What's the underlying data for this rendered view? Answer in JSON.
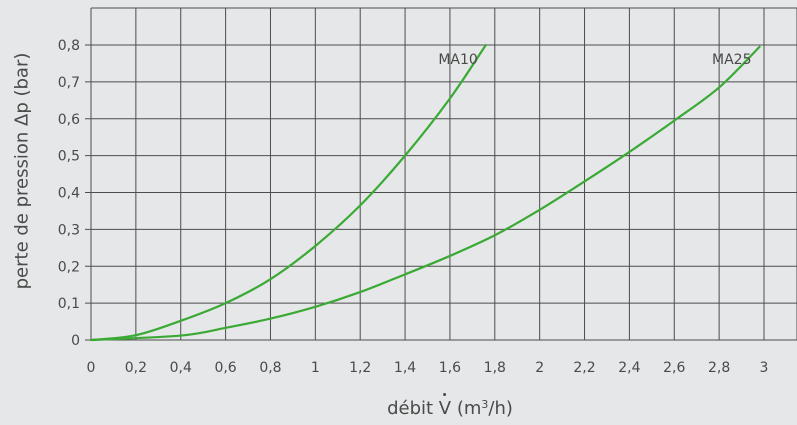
{
  "chart_data": {
    "type": "line",
    "title": "",
    "xlabel_prefix": "débit ",
    "xlabel_symbol": "V",
    "xlabel_unit_open": " (m",
    "xlabel_unit_sup": "3",
    "xlabel_unit_close": "/h)",
    "ylabel": "perte de pression Δp (bar)",
    "xlim": [
      0,
      3.15
    ],
    "ylim": [
      0,
      0.9
    ],
    "grid": true,
    "x_ticks": [
      0,
      0.2,
      0.4,
      0.6,
      0.8,
      1,
      1.2,
      1.4,
      1.6,
      1.8,
      2,
      2.2,
      2.4,
      2.6,
      2.8,
      3
    ],
    "x_tick_labels": [
      "0",
      "0,2",
      "0,4",
      "0,6",
      "0,8",
      "1",
      "1,2",
      "1,4",
      "1,6",
      "1,8",
      "2",
      "2,2",
      "2,4",
      "2,6",
      "2,8",
      "3"
    ],
    "y_ticks": [
      0,
      0.1,
      0.2,
      0.3,
      0.4,
      0.5,
      0.6,
      0.7,
      0.8
    ],
    "y_tick_labels": [
      "0",
      "0,1",
      "0,2",
      "0,3",
      "0,4",
      "0,5",
      "0,6",
      "0,7",
      "0,8"
    ],
    "line_color": "#3aaa35",
    "series": [
      {
        "name": "MA10",
        "x": [
          0,
          0.2,
          0.4,
          0.6,
          0.8,
          1.0,
          1.2,
          1.4,
          1.6,
          1.76
        ],
        "y": [
          0,
          0.013,
          0.052,
          0.1,
          0.165,
          0.255,
          0.365,
          0.5,
          0.655,
          0.8
        ]
      },
      {
        "name": "MA25",
        "x": [
          0,
          0.4,
          0.6,
          0.8,
          1.0,
          1.2,
          1.4,
          1.6,
          1.8,
          2.0,
          2.2,
          2.4,
          2.6,
          2.8,
          2.98
        ],
        "y": [
          0,
          0.012,
          0.033,
          0.058,
          0.09,
          0.13,
          0.178,
          0.228,
          0.284,
          0.353,
          0.43,
          0.51,
          0.595,
          0.685,
          0.795
        ]
      }
    ]
  }
}
